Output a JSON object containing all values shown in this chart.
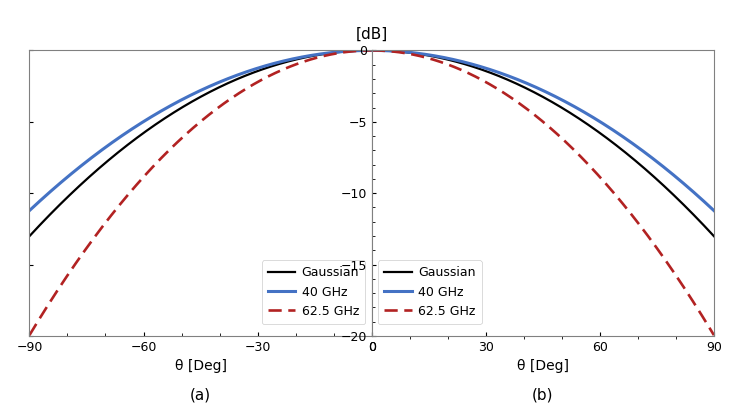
{
  "title_dB": "[dB]",
  "xlabel": "θ [Deg]",
  "label_a": "(a)",
  "label_b": "(b)",
  "ylim": [
    -20,
    0
  ],
  "yticks": [
    0,
    -5,
    -10,
    -15,
    -20
  ],
  "xlim_a": [
    -90,
    0
  ],
  "xticks_a": [
    -90,
    -60,
    -30,
    0
  ],
  "xlim_b": [
    0,
    90
  ],
  "xticks_b": [
    0,
    30,
    60,
    90
  ],
  "legend_labels": [
    "Gaussian",
    "40 GHz",
    "62.5 GHz"
  ],
  "colors": {
    "gaussian": "#000000",
    "40ghz": "#4472C4",
    "62ghz": "#B22222"
  },
  "sigma_gaussian": 52.0,
  "sigma_40ghz": 56.0,
  "sigma_62ghz": 42.0,
  "background_color": "#ffffff",
  "axes_color": "#808080"
}
